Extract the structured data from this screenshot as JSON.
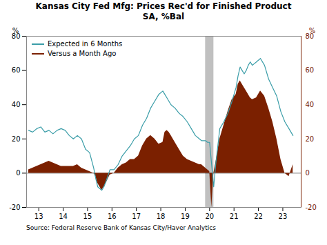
{
  "chart_data": {
    "type": "line",
    "title": "Kansas City Fed Mfg: Prices Rec'd for Finished Product\nSA, %Bal",
    "source": "Source:  Federal Reserve Bank of Kansas City/Haver Analytics",
    "ylabel": "%",
    "y2label": "%",
    "x": [
      2012.583,
      2012.75,
      2012.917,
      2013.083,
      2013.25,
      2013.417,
      2013.583,
      2013.75,
      2013.917,
      2014.083,
      2014.25,
      2014.417,
      2014.583,
      2014.75,
      2014.917,
      2015.083,
      2015.25,
      2015.333,
      2015.417,
      2015.5,
      2015.583,
      2015.667,
      2015.75,
      2015.917,
      2016.083,
      2016.25,
      2016.417,
      2016.583,
      2016.75,
      2016.917,
      2017.083,
      2017.25,
      2017.417,
      2017.583,
      2017.75,
      2017.917,
      2018.083,
      2018.167,
      2018.25,
      2018.333,
      2018.417,
      2018.583,
      2018.75,
      2018.917,
      2019.083,
      2019.25,
      2019.417,
      2019.583,
      2019.667,
      2019.75,
      2019.833,
      2019.917,
      2020.0,
      2020.083,
      2020.167,
      2020.25,
      2020.417,
      2020.583,
      2020.75,
      2020.917,
      2021.083,
      2021.167,
      2021.25,
      2021.333,
      2021.417,
      2021.5,
      2021.583,
      2021.667,
      2021.75,
      2021.917,
      2022.083,
      2022.25,
      2022.417,
      2022.583,
      2022.75,
      2022.917,
      2023.083,
      2023.25,
      2023.417
    ],
    "series": [
      {
        "name": "Expected in 6 Months",
        "type": "line",
        "color": "#3a9da8",
        "values": [
          25,
          24,
          26,
          27,
          24,
          25,
          23,
          25,
          26,
          25,
          22,
          20,
          22,
          20,
          14,
          12,
          3,
          -3,
          -8,
          -9,
          -10,
          -8,
          -5,
          2,
          2,
          5,
          10,
          13,
          16,
          20,
          22,
          28,
          32,
          38,
          42,
          46,
          48,
          46,
          44,
          42,
          40,
          38,
          35,
          33,
          30,
          26,
          22,
          20,
          19,
          19,
          19,
          18,
          18,
          5,
          -8,
          5,
          26,
          30,
          35,
          42,
          50,
          57,
          62,
          60,
          58,
          60,
          63,
          65,
          63,
          65,
          67,
          63,
          55,
          50,
          45,
          36,
          30,
          26,
          22
        ]
      },
      {
        "name": "Versus a Month Ago",
        "type": "area",
        "color": "#7b2000",
        "axis": "y2",
        "values": [
          2,
          3,
          4,
          5,
          6,
          7,
          6,
          5,
          4,
          4,
          4,
          4,
          5,
          3,
          2,
          1,
          0,
          -2,
          -6,
          -8,
          -10,
          -8,
          -6,
          -1,
          0,
          3,
          5,
          6,
          8,
          8,
          10,
          16,
          20,
          22,
          20,
          17,
          18,
          24,
          25,
          24,
          22,
          18,
          14,
          10,
          8,
          7,
          6,
          5,
          5,
          4,
          3,
          2,
          1,
          -20,
          0,
          6,
          20,
          28,
          36,
          43,
          46,
          52,
          54,
          52,
          50,
          48,
          46,
          44,
          43,
          44,
          48,
          45,
          38,
          30,
          20,
          8,
          0,
          -2,
          5
        ]
      }
    ],
    "xlim": [
      2012.5,
      2023.75
    ],
    "xticks": [
      {
        "value": 2013,
        "label": "13"
      },
      {
        "value": 2014,
        "label": "14"
      },
      {
        "value": 2015,
        "label": "15"
      },
      {
        "value": 2016,
        "label": "16"
      },
      {
        "value": 2017,
        "label": "17"
      },
      {
        "value": 2018,
        "label": "18"
      },
      {
        "value": 2019,
        "label": "19"
      },
      {
        "value": 2020,
        "label": "20"
      },
      {
        "value": 2021,
        "label": "21"
      },
      {
        "value": 2022,
        "label": "22"
      },
      {
        "value": 2023,
        "label": "23"
      }
    ],
    "ylim": [
      -20,
      80
    ],
    "yticks": [
      -20,
      0,
      20,
      40,
      60,
      80
    ],
    "y2lim": [
      -20,
      80
    ],
    "y2ticks": [
      -20,
      0,
      20,
      40,
      60,
      80
    ],
    "bands": [
      {
        "x0": 2019.83,
        "x1": 2020.17,
        "color": "#c0c0c0"
      }
    ],
    "legend": "upper left",
    "grid": false
  }
}
